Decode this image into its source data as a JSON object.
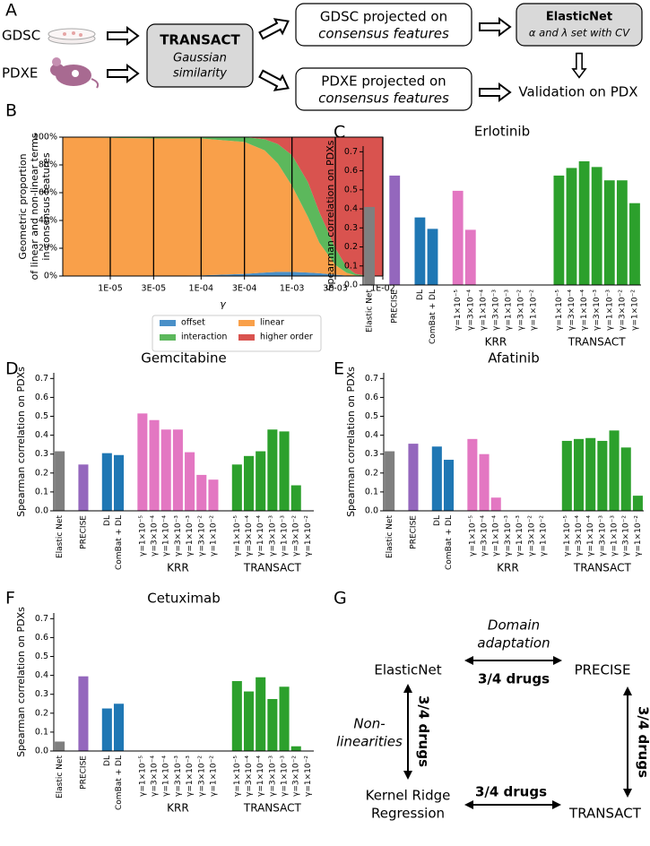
{
  "panel_labels": [
    "A",
    "B",
    "C",
    "D",
    "E",
    "F",
    "G"
  ],
  "diagram_a": {
    "sources": [
      "GDSC",
      "PDXE"
    ],
    "transact": {
      "title": "TRANSACT",
      "subtitle": [
        "Gaussian",
        "similarity"
      ]
    },
    "gdsc_projected": [
      "GDSC projected on",
      "consensus features"
    ],
    "pdxe_projected": [
      "PDXE projected on",
      "consensus features"
    ],
    "elasticnet": {
      "title": "ElasticNet",
      "subtitle": "α and λ set with CV"
    },
    "validation": "Validation on PDX"
  },
  "diagram_g": {
    "nodes": [
      {
        "lines": [
          "ElasticNet"
        ]
      },
      {
        "lines": [
          "PRECISE"
        ]
      },
      {
        "lines": [
          "Kernel Ridge",
          "Regression"
        ]
      },
      {
        "lines": [
          "TRANSACT"
        ]
      }
    ],
    "edges": [
      {
        "label": "3/4 drugs",
        "note": [
          "Domain",
          "adaptation"
        ]
      },
      {
        "label": "3/4 drugs",
        "note": [
          "Non-",
          "linearities"
        ]
      },
      {
        "label": "3/4 drugs"
      },
      {
        "label": "3/4 drugs"
      }
    ]
  },
  "chart_data": [
    {
      "type": "area",
      "y_label": [
        "Geometric proportion",
        "of linear and non-linear terms",
        "in consensus features"
      ],
      "x_label": "γ",
      "log_x": true,
      "grid": true,
      "legend": "bottom",
      "x": [
        3e-06,
        1e-05,
        3e-05,
        0.0001,
        0.0003,
        0.0005,
        0.0007,
        0.001,
        0.0015,
        0.002,
        0.003,
        0.004,
        0.005,
        0.007,
        0.01
      ],
      "xlim": [
        3e-06,
        0.01
      ],
      "xticks": [
        {
          "value": 1e-05,
          "label": "1E-05"
        },
        {
          "value": 3e-05,
          "label": "3E-05"
        },
        {
          "value": 0.0001,
          "label": "1E-04"
        },
        {
          "value": 0.0003,
          "label": "3E-04"
        },
        {
          "value": 0.001,
          "label": "1E-03"
        },
        {
          "value": 0.003,
          "label": "3E-03"
        },
        {
          "value": 0.01,
          "label": "1E-02"
        }
      ],
      "ylim": [
        0,
        100
      ],
      "yticks": [
        {
          "value": 0,
          "label": "0%"
        },
        {
          "value": 20,
          "label": "20%"
        },
        {
          "value": 40,
          "label": "40%"
        },
        {
          "value": 60,
          "label": "60%"
        },
        {
          "value": 80,
          "label": "80%"
        },
        {
          "value": 100,
          "label": "100%"
        }
      ],
      "series": [
        {
          "name": "offset",
          "color": "#4a90c8",
          "values": [
            0,
            0,
            0,
            0.5,
            1.5,
            2.5,
            3,
            3,
            2.5,
            2,
            1,
            0.3,
            0,
            0,
            0
          ]
        },
        {
          "name": "linear",
          "color": "#f9a04a",
          "values": [
            100,
            99.5,
            99,
            98.5,
            95,
            88,
            78,
            62,
            40,
            22,
            7,
            2,
            0.5,
            0,
            0
          ]
        },
        {
          "name": "interaction",
          "color": "#5cb85c",
          "values": [
            0,
            0.5,
            1,
            1,
            3.5,
            8,
            14,
            22,
            25,
            22,
            12,
            4,
            1,
            0,
            0
          ]
        },
        {
          "name": "higher order",
          "color": "#d9534f",
          "values": [
            0,
            0,
            0,
            0,
            0,
            1.5,
            5,
            13,
            32.5,
            54,
            80,
            93.7,
            98.5,
            100,
            100
          ]
        }
      ]
    },
    {
      "type": "bar",
      "title": "Erlotinib",
      "y_label": "Spearman correlation on PDXs",
      "categories": [
        "Elastic Net",
        null,
        "PRECISE",
        null,
        "DL",
        "ComBat + DL",
        null,
        "γ=1×10⁻⁵",
        "γ=3×10⁻⁴",
        "γ=1×10⁻⁴",
        "γ=3×10⁻³",
        "γ=1×10⁻³",
        "γ=3×10⁻²",
        "γ=1×10⁻²",
        null,
        "γ=1×10⁻⁵",
        "γ=3×10⁻⁴",
        "γ=1×10⁻⁴",
        "γ=3×10⁻³",
        "γ=1×10⁻³",
        "γ=3×10⁻²",
        "γ=1×10⁻²"
      ],
      "values": [
        0.41,
        null,
        0.575,
        null,
        0.355,
        0.295,
        null,
        0.495,
        0.29,
        null,
        null,
        null,
        null,
        null,
        null,
        0.575,
        0.615,
        0.65,
        0.62,
        0.55,
        0.55,
        0.43
      ],
      "colors": [
        "#7f7f7f",
        null,
        "#9467bd",
        null,
        "#1f77b4",
        "#1f77b4",
        null,
        "#e377c2",
        "#e377c2",
        "#e377c2",
        "#e377c2",
        "#e377c2",
        "#e377c2",
        "#e377c2",
        null,
        "#2ca02c",
        "#2ca02c",
        "#2ca02c",
        "#2ca02c",
        "#2ca02c",
        "#2ca02c",
        "#2ca02c"
      ],
      "groups": [
        {
          "label": "KRR",
          "from": 7,
          "to": 13
        },
        {
          "label": "TRANSACT",
          "from": 15,
          "to": 21
        }
      ],
      "ylim": [
        0,
        0.73
      ],
      "yticks": [
        {
          "value": 0,
          "label": "0.0"
        },
        0.1,
        0.2,
        0.3,
        0.4,
        0.5,
        0.6,
        0.7
      ]
    },
    {
      "type": "bar",
      "title": "Gemcitabine",
      "y_label": "Spearman correlation on PDXs",
      "categories": [
        "Elastic Net",
        null,
        "PRECISE",
        null,
        "DL",
        "ComBat + DL",
        null,
        "γ=1×10⁻⁵",
        "γ=3×10⁻⁴",
        "γ=1×10⁻⁴",
        "γ=3×10⁻³",
        "γ=1×10⁻³",
        "γ=3×10⁻²",
        "γ=1×10⁻²",
        null,
        "γ=1×10⁻⁵",
        "γ=3×10⁻⁴",
        "γ=1×10⁻⁴",
        "γ=3×10⁻³",
        "γ=1×10⁻³",
        "γ=3×10⁻²",
        "γ=1×10⁻²"
      ],
      "values": [
        0.315,
        null,
        0.245,
        null,
        0.305,
        0.295,
        null,
        0.515,
        0.48,
        0.43,
        0.43,
        0.31,
        0.19,
        0.165,
        null,
        0.245,
        0.29,
        0.315,
        0.43,
        0.42,
        0.135,
        null
      ],
      "colors": [
        "#7f7f7f",
        null,
        "#9467bd",
        null,
        "#1f77b4",
        "#1f77b4",
        null,
        "#e377c2",
        "#e377c2",
        "#e377c2",
        "#e377c2",
        "#e377c2",
        "#e377c2",
        "#e377c2",
        null,
        "#2ca02c",
        "#2ca02c",
        "#2ca02c",
        "#2ca02c",
        "#2ca02c",
        "#2ca02c",
        "#2ca02c"
      ],
      "groups": [
        {
          "label": "KRR",
          "from": 7,
          "to": 13
        },
        {
          "label": "TRANSACT",
          "from": 15,
          "to": 21
        }
      ],
      "ylim": [
        0,
        0.73
      ],
      "yticks": [
        {
          "value": 0,
          "label": "0.0"
        },
        0.1,
        0.2,
        0.3,
        0.4,
        0.5,
        0.6,
        0.7
      ]
    },
    {
      "type": "bar",
      "title": "Afatinib",
      "y_label": "Spearman correlation on PDXs",
      "categories": [
        "Elastic Net",
        null,
        "PRECISE",
        null,
        "DL",
        "ComBat + DL",
        null,
        "γ=1×10⁻⁵",
        "γ=3×10⁻⁴",
        "γ=1×10⁻⁴",
        "γ=3×10⁻³",
        "γ=1×10⁻³",
        "γ=3×10⁻²",
        "γ=1×10⁻²",
        null,
        "γ=1×10⁻⁵",
        "γ=3×10⁻⁴",
        "γ=1×10⁻⁴",
        "γ=3×10⁻³",
        "γ=1×10⁻³",
        "γ=3×10⁻²",
        "γ=1×10⁻²"
      ],
      "values": [
        0.315,
        null,
        0.355,
        null,
        0.34,
        0.27,
        null,
        0.38,
        0.3,
        0.07,
        null,
        null,
        null,
        null,
        null,
        0.37,
        0.38,
        0.385,
        0.37,
        0.425,
        0.335,
        0.08
      ],
      "colors": [
        "#7f7f7f",
        null,
        "#9467bd",
        null,
        "#1f77b4",
        "#1f77b4",
        null,
        "#e377c2",
        "#e377c2",
        "#e377c2",
        "#e377c2",
        "#e377c2",
        "#e377c2",
        "#e377c2",
        null,
        "#2ca02c",
        "#2ca02c",
        "#2ca02c",
        "#2ca02c",
        "#2ca02c",
        "#2ca02c",
        "#2ca02c"
      ],
      "groups": [
        {
          "label": "KRR",
          "from": 7,
          "to": 13
        },
        {
          "label": "TRANSACT",
          "from": 15,
          "to": 21
        }
      ],
      "ylim": [
        0,
        0.73
      ],
      "yticks": [
        {
          "value": 0,
          "label": "0.0"
        },
        0.1,
        0.2,
        0.3,
        0.4,
        0.5,
        0.6,
        0.7
      ]
    },
    {
      "type": "bar",
      "title": "Cetuximab",
      "y_label": "Spearman correlation on PDXs",
      "categories": [
        "Elastic Net",
        null,
        "PRECISE",
        null,
        "DL",
        "ComBat + DL",
        null,
        "γ=1×10⁻⁵",
        "γ=3×10⁻⁴",
        "γ=1×10⁻⁴",
        "γ=3×10⁻³",
        "γ=1×10⁻³",
        "γ=3×10⁻²",
        "γ=1×10⁻²",
        null,
        "γ=1×10⁻⁵",
        "γ=3×10⁻⁴",
        "γ=1×10⁻⁴",
        "γ=3×10⁻³",
        "γ=1×10⁻³",
        "γ=3×10⁻²",
        "γ=1×10⁻²"
      ],
      "values": [
        0.05,
        null,
        0.395,
        null,
        0.225,
        0.25,
        null,
        null,
        null,
        null,
        null,
        null,
        null,
        null,
        null,
        0.37,
        0.315,
        0.39,
        0.275,
        0.34,
        0.025,
        null
      ],
      "colors": [
        "#7f7f7f",
        null,
        "#9467bd",
        null,
        "#1f77b4",
        "#1f77b4",
        null,
        "#e377c2",
        "#e377c2",
        "#e377c2",
        "#e377c2",
        "#e377c2",
        "#e377c2",
        "#e377c2",
        null,
        "#2ca02c",
        "#2ca02c",
        "#2ca02c",
        "#2ca02c",
        "#2ca02c",
        "#2ca02c",
        "#2ca02c"
      ],
      "groups": [
        {
          "label": "KRR",
          "from": 7,
          "to": 13
        },
        {
          "label": "TRANSACT",
          "from": 15,
          "to": 21
        }
      ],
      "ylim": [
        0,
        0.73
      ],
      "yticks": [
        {
          "value": 0,
          "label": "0.0"
        },
        0.1,
        0.2,
        0.3,
        0.4,
        0.5,
        0.6,
        0.7
      ]
    }
  ]
}
